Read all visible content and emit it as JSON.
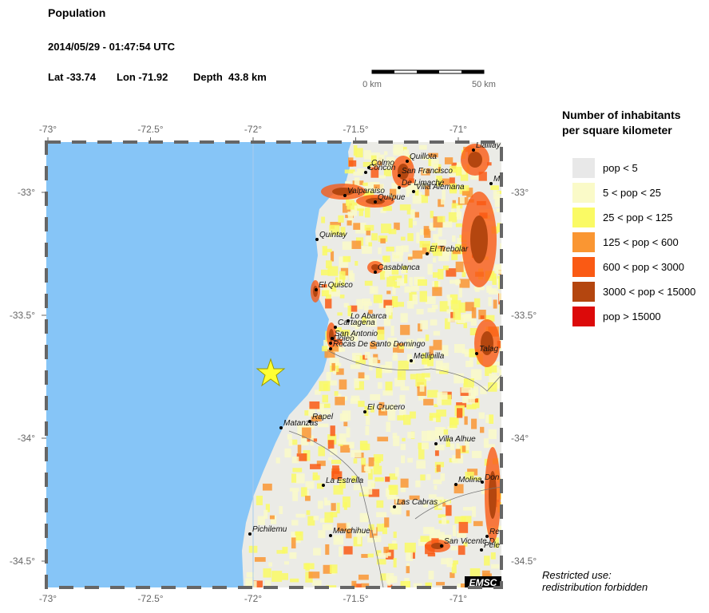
{
  "header": {
    "title": "Population",
    "datetime": "2014/05/29 - 01:47:54 UTC",
    "lat": "Lat -33.74",
    "lon": "Lon -71.92",
    "depth": "Depth  43.8 km"
  },
  "scale_bar": {
    "start": "0 km",
    "end": "50 km"
  },
  "map": {
    "x_ticks": [
      {
        "value": -73,
        "label": "-73°"
      },
      {
        "value": -72.5,
        "label": "-72.5°"
      },
      {
        "value": -72,
        "label": "-72°"
      },
      {
        "value": -71.5,
        "label": "-71.5°"
      },
      {
        "value": -71,
        "label": "-71°"
      }
    ],
    "y_ticks": [
      {
        "value": -33,
        "label": "-33°"
      },
      {
        "value": -33.5,
        "label": "-33.5°"
      },
      {
        "value": -34,
        "label": "-34°"
      },
      {
        "value": -34.5,
        "label": "-34.5°"
      }
    ],
    "cities": [
      "Llaillay",
      "Quillota",
      "Colmo",
      "Concon",
      "San Francisco",
      "De Limache",
      "Villa Alemana",
      "Valparaiso",
      "Quilpue",
      "M",
      "Quintay",
      "El Trebolar",
      "Casablanca",
      "El Quisco",
      "Lo Abarca",
      "Cartagena",
      "San Antonio",
      "Lloleo",
      "Rocas De Santo Domingo",
      "Mellipilla",
      "Talag",
      "El Crucero",
      "Rapel",
      "Matanzas",
      "Villa Alhue",
      "La Estrella",
      "Molina",
      "Don",
      "Las Cabras",
      "Pichilemu",
      "Marchihue",
      "Re",
      "San Vicente D",
      "Pele"
    ],
    "credit": "EMSC"
  },
  "legend": {
    "title": [
      "Number of inhabitants",
      "per square kilometer"
    ],
    "items": [
      {
        "label": "pop < 5",
        "color": "#e8e8e8"
      },
      {
        "label": "5 < pop < 25",
        "color": "#fafac8"
      },
      {
        "label": "25 < pop < 125",
        "color": "#fafa64"
      },
      {
        "label": "125 < pop < 600",
        "color": "#fa9632"
      },
      {
        "label": "600 < pop < 3000",
        "color": "#fa5a14"
      },
      {
        "label": "3000 < pop < 15000",
        "color": "#b4460f"
      },
      {
        "label": "pop > 15000",
        "color": "#dc0a0a"
      }
    ]
  },
  "notice": [
    "Restricted use:",
    "redistribution forbidden"
  ]
}
